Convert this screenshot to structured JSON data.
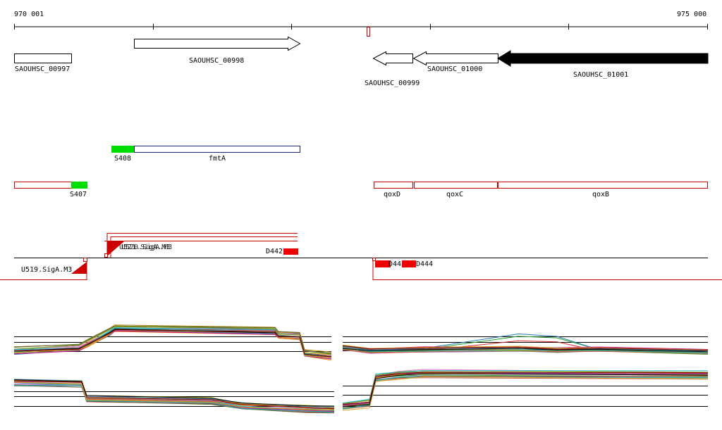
{
  "coordinates": {
    "start": "970 001",
    "end": "975 000"
  },
  "genes": [
    {
      "id": "gene-saouhsc-00997",
      "label": "SAOUHSC_00997",
      "strand": "none",
      "fill": "white"
    },
    {
      "id": "gene-saouhsc-00998",
      "label": "SAOUHSC_00998",
      "strand": "+",
      "fill": "white"
    },
    {
      "id": "gene-saouhsc-00999",
      "label": "SAOUHSC_00999",
      "strand": "-",
      "fill": "white"
    },
    {
      "id": "gene-saouhsc-01000",
      "label": "SAOUHSC_01000",
      "strand": "-",
      "fill": "white"
    },
    {
      "id": "gene-saouhsc-01001",
      "label": "SAOUHSC_01001",
      "strand": "-",
      "fill": "black"
    }
  ],
  "plus_features": [
    {
      "label": "S408",
      "color": "#00dd00"
    },
    {
      "label": "fmtA",
      "color": "#1a237e"
    }
  ],
  "minus_features": [
    {
      "label": "S407",
      "color": "#00dd00"
    },
    {
      "label": "qoxD",
      "color": "#cc0000"
    },
    {
      "label": "qoxC",
      "color": "#cc0000"
    },
    {
      "label": "qoxB",
      "color": "#cc0000"
    }
  ],
  "regulatory": [
    {
      "label": "U521.SigA.M3",
      "overlap_label": "U520.SigA.M3",
      "strand": "+"
    },
    {
      "label": "U519.SigA.M3",
      "strand": "-"
    },
    {
      "label": "D442",
      "strand": "+"
    },
    {
      "label": "D443",
      "strand": "-"
    },
    {
      "label": "D444",
      "strand": "-"
    }
  ],
  "colors": {
    "axis": "#000000",
    "feature_red": "#cc0000",
    "green": "#00dd00",
    "navy": "#1a237e"
  },
  "expression_panels": [
    "plus-left",
    "plus-right",
    "minus-left",
    "minus-right"
  ]
}
